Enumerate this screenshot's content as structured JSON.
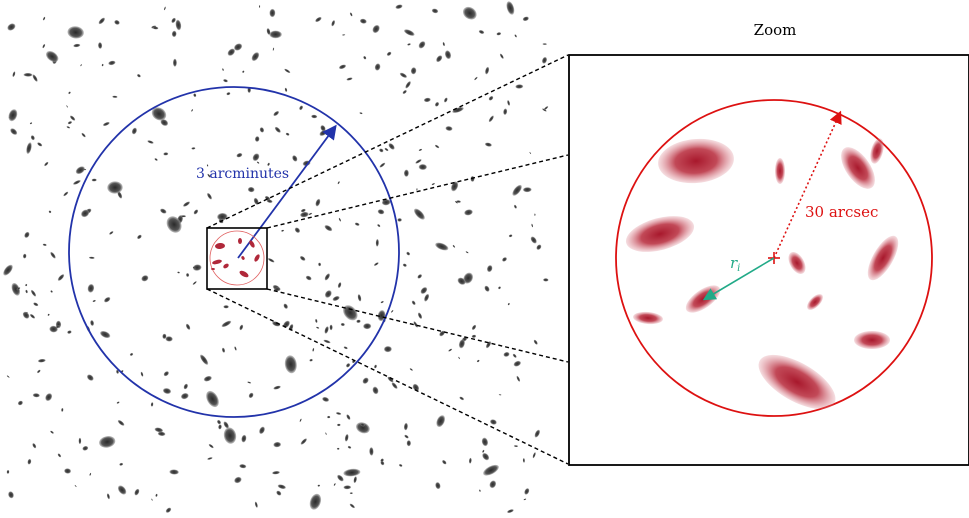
{
  "title": "Zoom",
  "labels": {
    "outer_radius": "3 arcminutes",
    "inner_radius": "30 arcsec",
    "galaxy_distance": "r",
    "galaxy_distance_sub": "i"
  },
  "colors": {
    "outer_circle": "#2233aa",
    "inner_circle": "#dd1111",
    "background_galaxies": "#555555",
    "lensed_galaxies": "#b0283a",
    "distance_arrow": "#22aa88",
    "frame": "#000000",
    "zoom_lines": "#000000"
  },
  "icons": {
    "center_marker": "plus-icon"
  }
}
